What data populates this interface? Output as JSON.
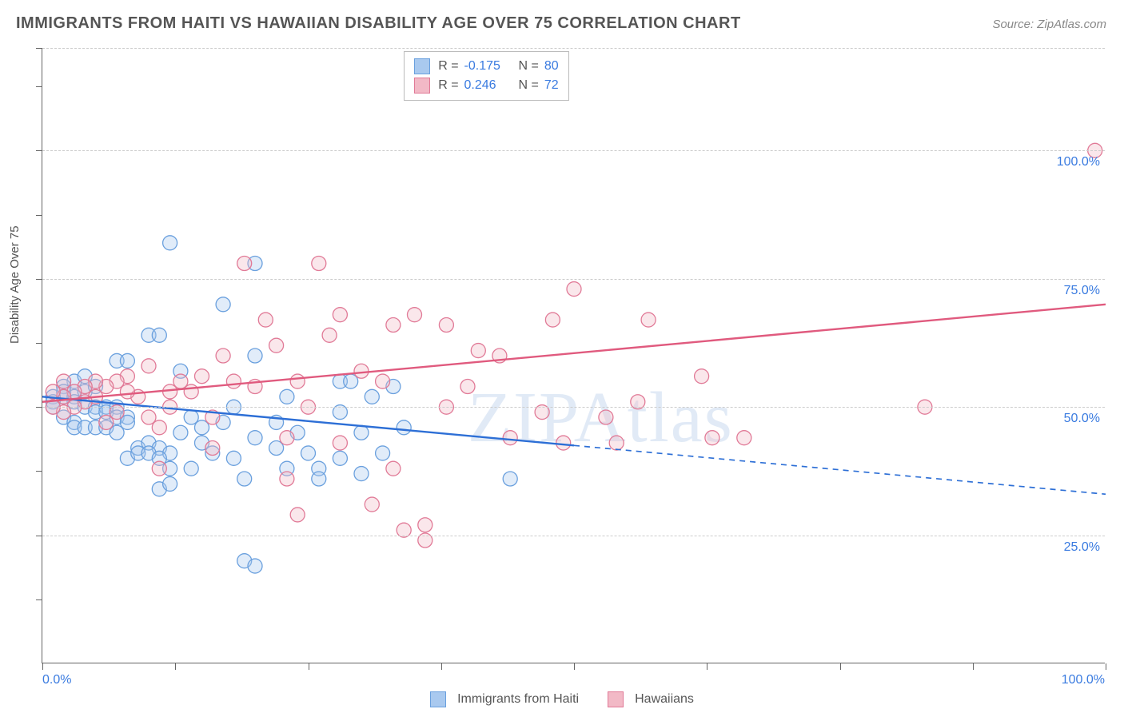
{
  "title": "IMMIGRANTS FROM HAITI VS HAWAIIAN DISABILITY AGE OVER 75 CORRELATION CHART",
  "source": "Source: ZipAtlas.com",
  "watermark": "ZIPAtlas",
  "ylabel": "Disability Age Over 75",
  "chart": {
    "type": "scatter",
    "background_color": "#ffffff",
    "grid_color": "#cccccc",
    "axis_color": "#666666",
    "label_color": "#3a7be0",
    "text_color": "#555555",
    "title_fontsize": 20,
    "label_fontsize": 15,
    "tick_fontsize": 16,
    "marker_radius": 9,
    "marker_fill_opacity": 0.35,
    "marker_stroke_width": 1.3,
    "trend_line_width": 2.4,
    "xlim": [
      0,
      100
    ],
    "ylim": [
      0,
      120
    ],
    "x_ticks": [
      0,
      12.5,
      25,
      37.5,
      50,
      62.5,
      75,
      87.5,
      100
    ],
    "x_tick_labels": {
      "0": "0.0%",
      "100": "100.0%"
    },
    "y_gridlines": [
      25,
      50,
      75,
      100,
      120
    ],
    "y_tick_labels": {
      "25": "25.0%",
      "50": "50.0%",
      "75": "75.0%",
      "100": "100.0%"
    },
    "y_minor_ticks": [
      12.5,
      37.5,
      62.5,
      87.5,
      112.5
    ]
  },
  "series": [
    {
      "name": "Immigrants from Haiti",
      "color_fill": "#a9c9ef",
      "color_stroke": "#6aa0de",
      "trend_color": "#2d6fd6",
      "R": "-0.175",
      "N": "80",
      "trend_start_y": 52,
      "trend_end_y": 33,
      "trend_solid_until_x": 50,
      "points": [
        [
          12,
          82
        ],
        [
          20,
          78
        ],
        [
          10,
          64
        ],
        [
          11,
          64
        ],
        [
          17,
          70
        ],
        [
          7,
          59
        ],
        [
          8,
          59
        ],
        [
          3,
          55
        ],
        [
          4,
          56
        ],
        [
          2,
          54
        ],
        [
          2,
          53
        ],
        [
          2,
          52
        ],
        [
          3,
          52
        ],
        [
          3,
          51
        ],
        [
          4,
          53
        ],
        [
          5,
          54
        ],
        [
          4,
          50
        ],
        [
          5,
          50
        ],
        [
          5,
          49
        ],
        [
          6,
          50
        ],
        [
          6,
          49
        ],
        [
          7,
          50
        ],
        [
          7,
          48
        ],
        [
          8,
          48
        ],
        [
          8,
          47
        ],
        [
          2,
          48
        ],
        [
          3,
          47
        ],
        [
          3,
          46
        ],
        [
          4,
          46
        ],
        [
          5,
          46
        ],
        [
          6,
          46
        ],
        [
          7,
          45
        ],
        [
          9,
          42
        ],
        [
          10,
          43
        ],
        [
          11,
          42
        ],
        [
          12,
          41
        ],
        [
          13,
          45
        ],
        [
          13,
          57
        ],
        [
          14,
          48
        ],
        [
          15,
          46
        ],
        [
          15,
          43
        ],
        [
          16,
          41
        ],
        [
          17,
          47
        ],
        [
          18,
          50
        ],
        [
          18,
          40
        ],
        [
          19,
          36
        ],
        [
          20,
          44
        ],
        [
          20,
          60
        ],
        [
          22,
          47
        ],
        [
          22,
          42
        ],
        [
          23,
          52
        ],
        [
          23,
          38
        ],
        [
          24,
          45
        ],
        [
          25,
          41
        ],
        [
          26,
          38
        ],
        [
          26,
          36
        ],
        [
          28,
          40
        ],
        [
          28,
          49
        ],
        [
          30,
          37
        ],
        [
          30,
          45
        ],
        [
          31,
          52
        ],
        [
          32,
          41
        ],
        [
          33,
          54
        ],
        [
          34,
          46
        ],
        [
          28,
          55
        ],
        [
          29,
          55
        ],
        [
          44,
          36
        ],
        [
          19,
          20
        ],
        [
          20,
          19
        ],
        [
          11,
          34
        ],
        [
          12,
          35
        ],
        [
          8,
          40
        ],
        [
          9,
          41
        ],
        [
          10,
          41
        ],
        [
          11,
          40
        ],
        [
          12,
          38
        ],
        [
          14,
          38
        ],
        [
          1,
          52
        ],
        [
          1,
          51
        ],
        [
          1,
          50
        ]
      ]
    },
    {
      "name": "Hawaiians",
      "color_fill": "#f2b9c6",
      "color_stroke": "#e17a97",
      "trend_color": "#e05a7e",
      "R": "0.246",
      "N": "72",
      "trend_start_y": 51,
      "trend_end_y": 70,
      "trend_solid_until_x": 100,
      "points": [
        [
          99,
          100
        ],
        [
          83,
          50
        ],
        [
          56,
          51
        ],
        [
          50,
          73
        ],
        [
          57,
          67
        ],
        [
          63,
          44
        ],
        [
          47,
          49
        ],
        [
          49,
          43
        ],
        [
          41,
          61
        ],
        [
          43,
          60
        ],
        [
          38,
          66
        ],
        [
          38,
          50
        ],
        [
          35,
          68
        ],
        [
          33,
          66
        ],
        [
          33,
          38
        ],
        [
          34,
          26
        ],
        [
          36,
          27
        ],
        [
          36,
          24
        ],
        [
          31,
          31
        ],
        [
          28,
          43
        ],
        [
          28,
          68
        ],
        [
          30,
          57
        ],
        [
          26,
          78
        ],
        [
          27,
          64
        ],
        [
          24,
          55
        ],
        [
          25,
          50
        ],
        [
          22,
          62
        ],
        [
          21,
          67
        ],
        [
          23,
          44
        ],
        [
          23,
          36
        ],
        [
          24,
          29
        ],
        [
          20,
          54
        ],
        [
          19,
          78
        ],
        [
          18,
          55
        ],
        [
          17,
          60
        ],
        [
          16,
          48
        ],
        [
          16,
          42
        ],
        [
          15,
          56
        ],
        [
          14,
          53
        ],
        [
          13,
          55
        ],
        [
          12,
          50
        ],
        [
          12,
          53
        ],
        [
          11,
          46
        ],
        [
          11,
          38
        ],
        [
          10,
          58
        ],
        [
          10,
          48
        ],
        [
          9,
          52
        ],
        [
          8,
          56
        ],
        [
          8,
          53
        ],
        [
          7,
          55
        ],
        [
          7,
          49
        ],
        [
          6,
          47
        ],
        [
          6,
          54
        ],
        [
          5,
          55
        ],
        [
          5,
          52
        ],
        [
          4,
          51
        ],
        [
          4,
          54
        ],
        [
          3,
          53
        ],
        [
          3,
          50
        ],
        [
          2,
          55
        ],
        [
          2,
          52
        ],
        [
          2,
          49
        ],
        [
          1,
          53
        ],
        [
          1,
          50
        ],
        [
          32,
          55
        ],
        [
          40,
          54
        ],
        [
          44,
          44
        ],
        [
          48,
          67
        ],
        [
          53,
          48
        ],
        [
          54,
          43
        ],
        [
          62,
          56
        ],
        [
          66,
          44
        ]
      ]
    }
  ],
  "r_legend": {
    "R_label": "R =",
    "N_label": "N ="
  },
  "bottom_legend": {
    "series1": "Immigrants from Haiti",
    "series2": "Hawaiians"
  }
}
